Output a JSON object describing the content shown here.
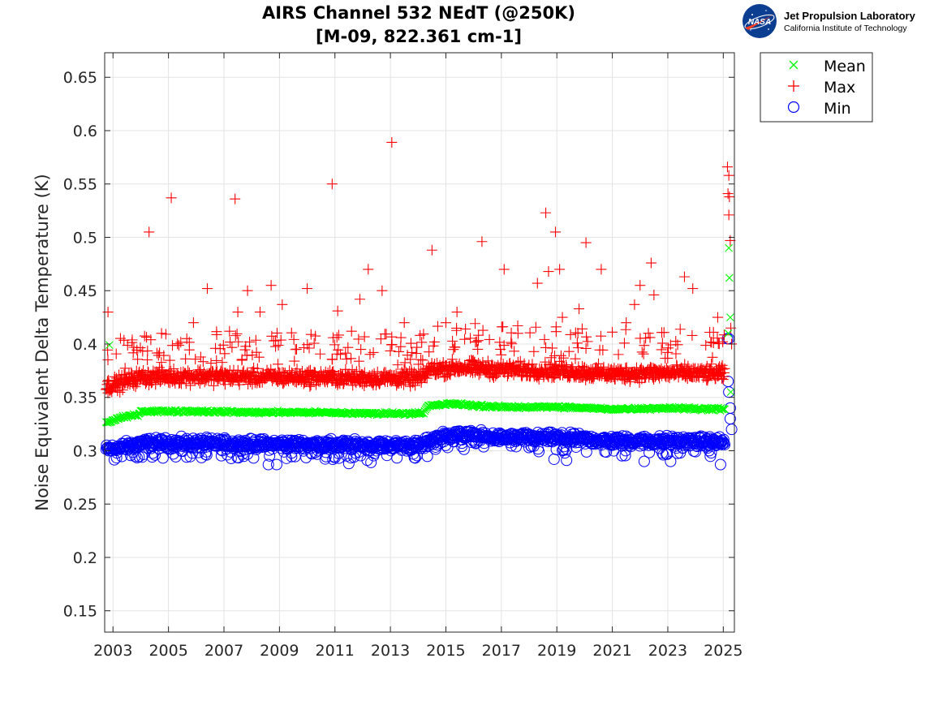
{
  "chart_data": {
    "type": "scatter",
    "title": "AIRS Channel 532 NEdT (@250K)",
    "subtitle": "[M-09, 822.361 cm-1]",
    "xlabel": "",
    "ylabel": "Noise Equivalent Delta Temperature (K)",
    "xlim": [
      2002.7,
      2025.4
    ],
    "ylim": [
      0.13,
      0.673
    ],
    "x_ticks": [
      "2003",
      "2005",
      "2007",
      "2009",
      "2011",
      "2013",
      "2015",
      "2017",
      "2019",
      "2021",
      "2023",
      "2025"
    ],
    "y_ticks": [
      "0.15",
      "0.2",
      "0.25",
      "0.3",
      "0.35",
      "0.4",
      "0.45",
      "0.5",
      "0.55",
      "0.6",
      "0.65"
    ],
    "grid": true,
    "legend_position": "outside-top-right",
    "series": [
      {
        "name": "Mean",
        "marker": "x",
        "color": "#00ff00",
        "baseline": [
          [
            2002.75,
            0.326
          ],
          [
            2003.3,
            0.331
          ],
          [
            2003.9,
            0.334
          ],
          [
            2004.0,
            0.337
          ],
          [
            2006.0,
            0.337
          ],
          [
            2008.0,
            0.336
          ],
          [
            2010.0,
            0.336
          ],
          [
            2012.0,
            0.335
          ],
          [
            2014.2,
            0.335
          ],
          [
            2014.35,
            0.342
          ],
          [
            2015.2,
            0.344
          ],
          [
            2016.8,
            0.341
          ],
          [
            2019.0,
            0.341
          ],
          [
            2021.0,
            0.339
          ],
          [
            2023.0,
            0.34
          ],
          [
            2025.05,
            0.339
          ]
        ],
        "outliers": [
          [
            2002.87,
            0.399
          ],
          [
            2025.2,
            0.49
          ],
          [
            2025.22,
            0.462
          ],
          [
            2025.25,
            0.425
          ],
          [
            2025.18,
            0.41
          ],
          [
            2025.27,
            0.355
          ]
        ]
      },
      {
        "name": "Max",
        "marker": "+",
        "color": "#ff0000",
        "baseline": [
          [
            2002.75,
            0.36
          ],
          [
            2003.3,
            0.364
          ],
          [
            2004.0,
            0.369
          ],
          [
            2006.0,
            0.37
          ],
          [
            2008.0,
            0.369
          ],
          [
            2010.0,
            0.369
          ],
          [
            2012.0,
            0.368
          ],
          [
            2014.2,
            0.368
          ],
          [
            2014.35,
            0.376
          ],
          [
            2015.5,
            0.378
          ],
          [
            2017.0,
            0.376
          ],
          [
            2019.0,
            0.375
          ],
          [
            2021.0,
            0.372
          ],
          [
            2023.0,
            0.373
          ],
          [
            2025.05,
            0.372
          ]
        ],
        "outliers": [
          [
            2002.82,
            0.43
          ],
          [
            2004.3,
            0.505
          ],
          [
            2004.75,
            0.41
          ],
          [
            2005.1,
            0.537
          ],
          [
            2005.9,
            0.42
          ],
          [
            2006.4,
            0.452
          ],
          [
            2007.2,
            0.412
          ],
          [
            2007.4,
            0.536
          ],
          [
            2007.5,
            0.43
          ],
          [
            2007.85,
            0.45
          ],
          [
            2008.3,
            0.43
          ],
          [
            2008.7,
            0.455
          ],
          [
            2009.1,
            0.437
          ],
          [
            2010.0,
            0.452
          ],
          [
            2010.9,
            0.55
          ],
          [
            2011.1,
            0.431
          ],
          [
            2011.6,
            0.412
          ],
          [
            2011.9,
            0.442
          ],
          [
            2012.2,
            0.47
          ],
          [
            2012.7,
            0.45
          ],
          [
            2013.05,
            0.589
          ],
          [
            2013.5,
            0.42
          ],
          [
            2014.5,
            0.488
          ],
          [
            2015.0,
            0.42
          ],
          [
            2015.4,
            0.43
          ],
          [
            2016.3,
            0.496
          ],
          [
            2017.1,
            0.47
          ],
          [
            2017.6,
            0.41
          ],
          [
            2018.3,
            0.457
          ],
          [
            2018.6,
            0.523
          ],
          [
            2018.7,
            0.468
          ],
          [
            2018.95,
            0.505
          ],
          [
            2019.1,
            0.47
          ],
          [
            2019.2,
            0.425
          ],
          [
            2019.8,
            0.433
          ],
          [
            2020.05,
            0.495
          ],
          [
            2020.6,
            0.47
          ],
          [
            2021.5,
            0.42
          ],
          [
            2021.8,
            0.437
          ],
          [
            2022.0,
            0.455
          ],
          [
            2022.4,
            0.476
          ],
          [
            2022.5,
            0.446
          ],
          [
            2023.6,
            0.463
          ],
          [
            2023.9,
            0.452
          ],
          [
            2024.8,
            0.425
          ],
          [
            2025.15,
            0.566
          ],
          [
            2025.2,
            0.558
          ],
          [
            2025.17,
            0.541
          ],
          [
            2025.22,
            0.538
          ],
          [
            2025.2,
            0.521
          ],
          [
            2025.25,
            0.497
          ],
          [
            2025.27,
            0.415
          ],
          [
            2025.3,
            0.4
          ]
        ]
      },
      {
        "name": "Min",
        "marker": "o",
        "color": "#0000ff",
        "baseline": [
          [
            2002.75,
            0.301
          ],
          [
            2003.3,
            0.303
          ],
          [
            2004.0,
            0.307
          ],
          [
            2006.0,
            0.307
          ],
          [
            2008.0,
            0.306
          ],
          [
            2010.0,
            0.306
          ],
          [
            2012.0,
            0.305
          ],
          [
            2014.2,
            0.305
          ],
          [
            2014.35,
            0.309
          ],
          [
            2015.2,
            0.315
          ],
          [
            2017.0,
            0.312
          ],
          [
            2019.0,
            0.312
          ],
          [
            2021.0,
            0.309
          ],
          [
            2023.0,
            0.309
          ],
          [
            2025.05,
            0.308
          ]
        ],
        "outliers": [
          [
            2008.6,
            0.287
          ],
          [
            2008.9,
            0.287
          ],
          [
            2011.5,
            0.288
          ],
          [
            2012.3,
            0.289
          ],
          [
            2018.9,
            0.292
          ],
          [
            2019.35,
            0.291
          ],
          [
            2022.15,
            0.29
          ],
          [
            2023.1,
            0.29
          ],
          [
            2024.9,
            0.287
          ],
          [
            2025.15,
            0.405
          ],
          [
            2025.2,
            0.405
          ],
          [
            2025.17,
            0.365
          ],
          [
            2025.2,
            0.355
          ],
          [
            2025.25,
            0.34
          ],
          [
            2025.25,
            0.33
          ],
          [
            2025.3,
            0.32
          ]
        ]
      }
    ]
  },
  "logo": {
    "agency_badge": "NASA",
    "lab_name": "Jet Propulsion Laboratory",
    "lab_subtitle": "California Institute of Technology"
  }
}
